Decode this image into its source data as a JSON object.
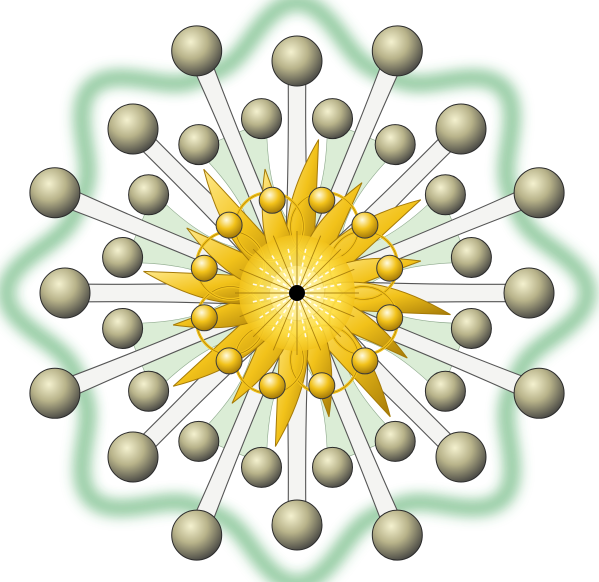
{
  "illustration": {
    "subject": "ornament-star",
    "colors": {
      "background": "#ffffff",
      "aura": "#2e9a4a",
      "arm_fill": "#f4f4f2",
      "arm_stroke": "#555555",
      "web_fill": "#d5ead0",
      "gold": "#f2c21a",
      "gold_dark": "#a57a08",
      "gold_light": "#ffe98a",
      "sphere_light": "#f4f1cf",
      "sphere_mid": "#b8b38a",
      "sphere_dark": "#3d3d3d",
      "center_dot": "#000000"
    }
  }
}
